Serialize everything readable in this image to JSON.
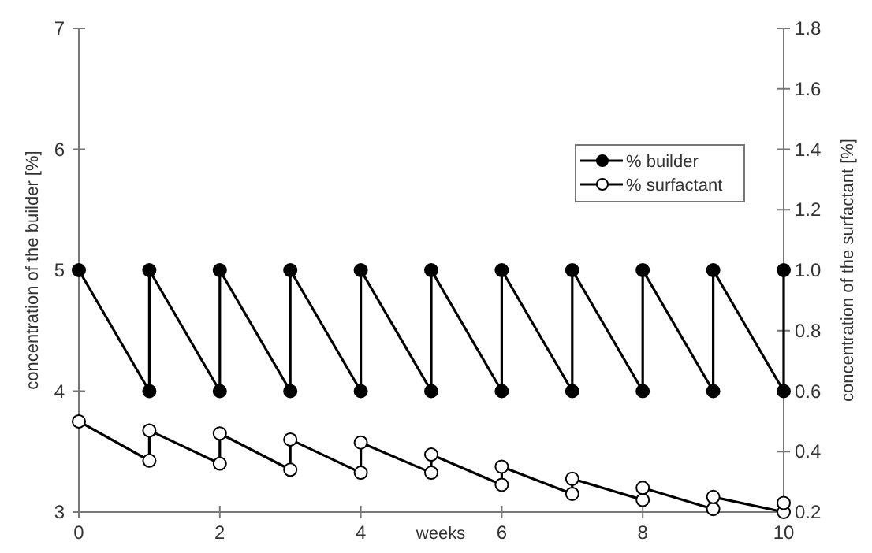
{
  "chart_data": {
    "type": "line",
    "xlabel": "weeks",
    "ylabel": "concentration of the builder [%]",
    "y2label": "concentration of the surfactant [%]",
    "xlim": [
      0,
      10
    ],
    "xticks": [
      0,
      2,
      4,
      6,
      8,
      10
    ],
    "ylim": [
      3,
      7
    ],
    "yticks": [
      3,
      4,
      5,
      6,
      7
    ],
    "y2lim": [
      0.2,
      1.8
    ],
    "y2ticks": [
      0.2,
      0.4,
      0.6,
      0.8,
      {
        "value": 1,
        "label": "1.0"
      },
      1.2,
      1.4,
      1.6,
      1.8
    ],
    "marker": "circle",
    "line_style": "solid",
    "legend": "top right",
    "grid": false,
    "series": [
      {
        "name": "% builder",
        "color": "#000000",
        "x": [
          0,
          1,
          1,
          2,
          2,
          3,
          3,
          4,
          4,
          5,
          5,
          6,
          6,
          7,
          7,
          8,
          8,
          9,
          9,
          10,
          10
        ],
        "values": [
          5,
          4,
          5,
          4,
          5,
          4,
          5,
          4,
          5,
          4,
          5,
          4,
          5,
          4,
          5,
          4,
          5,
          4,
          5,
          4,
          5
        ]
      },
      {
        "name": "% surfactant",
        "color": "#000000",
        "axis": "y2",
        "x": [
          0,
          1,
          1,
          2,
          2,
          3,
          3,
          4,
          4,
          5,
          5,
          6,
          6,
          7,
          7,
          8,
          8,
          9,
          9,
          10,
          10
        ],
        "values": [
          0.5,
          0.37,
          0.47,
          0.36,
          0.46,
          0.34,
          0.44,
          0.33,
          0.43,
          0.33,
          0.39,
          0.29,
          0.35,
          0.26,
          0.31,
          0.24,
          0.28,
          0.21,
          0.25,
          0.2,
          0.23
        ]
      }
    ]
  }
}
